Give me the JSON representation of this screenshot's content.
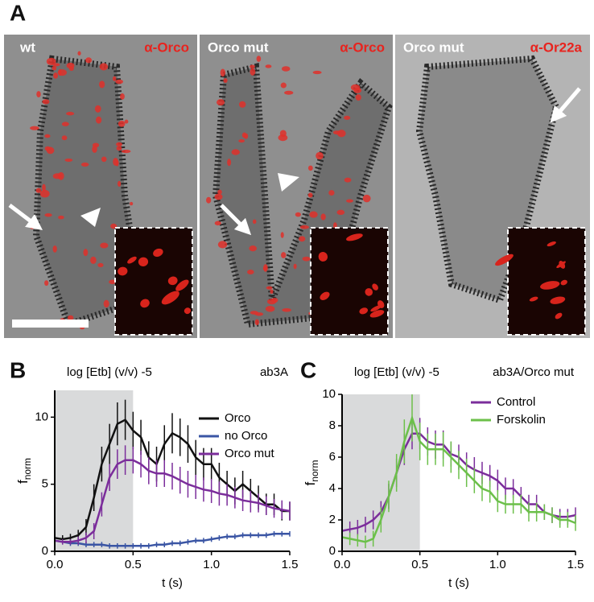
{
  "panel_a": {
    "label": "A",
    "images": [
      {
        "genotype": "wt",
        "stain": "α-Orco"
      },
      {
        "genotype": "Orco mut",
        "stain": "α-Orco"
      },
      {
        "genotype": "Orco mut",
        "stain": "α-Or22a"
      }
    ]
  },
  "chart_data": [
    {
      "type": "line",
      "panel_label": "B",
      "annotation": "log [Etb] (v/v) -5",
      "subtitle": "ab3A",
      "xlabel": "t (s)",
      "ylabel": "f",
      "ylabel_subscript": "norm",
      "xlim": [
        0,
        1.5
      ],
      "xticks": [
        {
          "value": 0,
          "label": "0.0"
        },
        {
          "value": 0.5,
          "label": "0.5"
        },
        {
          "value": 1,
          "label": "1.0"
        },
        {
          "value": 1.5,
          "label": "1.5"
        }
      ],
      "ylim": [
        0,
        12
      ],
      "yticks": [
        0,
        5,
        10
      ],
      "shaded_x": [
        0,
        0.5
      ],
      "shade_color": "#d9dadb",
      "legend": "upper right",
      "x": [
        0,
        0.05,
        0.1,
        0.15,
        0.2,
        0.25,
        0.3,
        0.35,
        0.4,
        0.45,
        0.5,
        0.55,
        0.6,
        0.65,
        0.7,
        0.75,
        0.8,
        0.85,
        0.9,
        0.95,
        1,
        1.05,
        1.1,
        1.15,
        1.2,
        1.25,
        1.3,
        1.35,
        1.4,
        1.45,
        1.5
      ],
      "series": [
        {
          "name": "Orco",
          "color": "#111111",
          "values": [
            1,
            0.9,
            1,
            1.2,
            1.8,
            4,
            6.5,
            8,
            9.5,
            9.8,
            9,
            8.5,
            7,
            6.5,
            8,
            8.8,
            8.5,
            8,
            7,
            6.5,
            6.5,
            5.5,
            5,
            4.5,
            5,
            4.5,
            4,
            3.5,
            3.5,
            3,
            3
          ],
          "errors": [
            0.3,
            0.3,
            0.3,
            0.4,
            0.6,
            1,
            1.3,
            1.5,
            1.6,
            1.5,
            1.4,
            1.3,
            1.2,
            1.3,
            1.4,
            1.5,
            1.4,
            1.4,
            1.3,
            1.2,
            1.2,
            1.1,
            1,
            1,
            1,
            0.9,
            0.9,
            0.8,
            0.8,
            0.7,
            0.7
          ]
        },
        {
          "name": "no Orco",
          "color": "#3a55a4",
          "values": [
            0.8,
            0.7,
            0.6,
            0.6,
            0.5,
            0.5,
            0.5,
            0.4,
            0.4,
            0.4,
            0.4,
            0.4,
            0.4,
            0.5,
            0.5,
            0.6,
            0.6,
            0.7,
            0.8,
            0.8,
            0.9,
            1,
            1.1,
            1.1,
            1.2,
            1.2,
            1.2,
            1.2,
            1.3,
            1.3,
            1.3
          ],
          "errors": [
            0.2,
            0.2,
            0.2,
            0.2,
            0.2,
            0.2,
            0.2,
            0.2,
            0.2,
            0.2,
            0.2,
            0.2,
            0.2,
            0.2,
            0.2,
            0.2,
            0.2,
            0.2,
            0.2,
            0.2,
            0.2,
            0.2,
            0.2,
            0.2,
            0.2,
            0.2,
            0.2,
            0.2,
            0.2,
            0.2,
            0.2
          ]
        },
        {
          "name": "Orco mut",
          "color": "#7b2d9b",
          "values": [
            0.8,
            0.7,
            0.7,
            0.8,
            1,
            1.5,
            3.5,
            5.5,
            6.5,
            6.8,
            6.8,
            6.5,
            6,
            5.8,
            5.8,
            5.6,
            5.3,
            5,
            4.8,
            4.6,
            4.5,
            4.3,
            4.2,
            4,
            3.8,
            3.7,
            3.6,
            3.4,
            3.2,
            3.1,
            3
          ],
          "errors": [
            0.2,
            0.2,
            0.2,
            0.3,
            0.4,
            0.6,
            0.9,
            1,
            1.1,
            1.1,
            1,
            1,
            1,
            1,
            1,
            1,
            1,
            1,
            0.9,
            0.9,
            0.9,
            0.9,
            0.8,
            0.8,
            0.8,
            0.8,
            0.7,
            0.7,
            0.7,
            0.7,
            0.7
          ]
        }
      ]
    },
    {
      "type": "line",
      "panel_label": "C",
      "annotation": "log [Etb] (v/v) -5",
      "subtitle": "ab3A/Orco mut",
      "xlabel": "t (s)",
      "ylabel": "f",
      "ylabel_subscript": "norm",
      "xlim": [
        0,
        1.5
      ],
      "xticks": [
        {
          "value": 0,
          "label": "0.0"
        },
        {
          "value": 0.5,
          "label": "0.5"
        },
        {
          "value": 1,
          "label": "1.0"
        },
        {
          "value": 1.5,
          "label": "1.5"
        }
      ],
      "ylim": [
        0,
        10
      ],
      "yticks": [
        0,
        2,
        4,
        6,
        8,
        10
      ],
      "shaded_x": [
        0,
        0.5
      ],
      "shade_color": "#d9dadb",
      "legend": "upper right",
      "x": [
        0,
        0.05,
        0.1,
        0.15,
        0.2,
        0.25,
        0.3,
        0.35,
        0.4,
        0.45,
        0.5,
        0.55,
        0.6,
        0.65,
        0.7,
        0.75,
        0.8,
        0.85,
        0.9,
        0.95,
        1,
        1.05,
        1.1,
        1.15,
        1.2,
        1.25,
        1.3,
        1.35,
        1.4,
        1.45,
        1.5
      ],
      "series": [
        {
          "name": "Control",
          "color": "#7b2d9b",
          "values": [
            1.3,
            1.4,
            1.5,
            1.7,
            2,
            2.5,
            3.5,
            5,
            6.5,
            7.5,
            7.5,
            7,
            6.8,
            6.8,
            6.2,
            6,
            5.5,
            5.2,
            5,
            4.8,
            4.5,
            4,
            4,
            3.5,
            3,
            3,
            2.5,
            2.3,
            2.2,
            2.2,
            2.3
          ],
          "errors": [
            0.5,
            0.5,
            0.5,
            0.5,
            0.6,
            0.7,
            0.8,
            0.9,
            1,
            1,
            1,
            0.9,
            0.9,
            0.9,
            0.8,
            0.8,
            0.8,
            0.8,
            0.7,
            0.7,
            0.7,
            0.7,
            0.6,
            0.6,
            0.6,
            0.6,
            0.5,
            0.5,
            0.5,
            0.5,
            0.5
          ]
        },
        {
          "name": "Forskolin",
          "color": "#6cc04a",
          "values": [
            0.9,
            0.8,
            0.7,
            0.6,
            0.8,
            2,
            3.5,
            5,
            7,
            8.5,
            7,
            6.5,
            6.5,
            6.5,
            6,
            5.5,
            5,
            4.5,
            4,
            3.8,
            3.2,
            3,
            3,
            3,
            2.5,
            2.5,
            2.5,
            2.3,
            2,
            2,
            1.8
          ],
          "errors": [
            0.4,
            0.4,
            0.4,
            0.4,
            0.5,
            0.8,
            1,
            1.2,
            1.4,
            1.5,
            1.2,
            1,
            1,
            1.1,
            1,
            0.9,
            0.9,
            0.8,
            0.8,
            0.7,
            0.7,
            0.6,
            0.6,
            0.6,
            0.6,
            0.6,
            0.5,
            0.5,
            0.5,
            0.5,
            0.5
          ]
        }
      ]
    }
  ]
}
